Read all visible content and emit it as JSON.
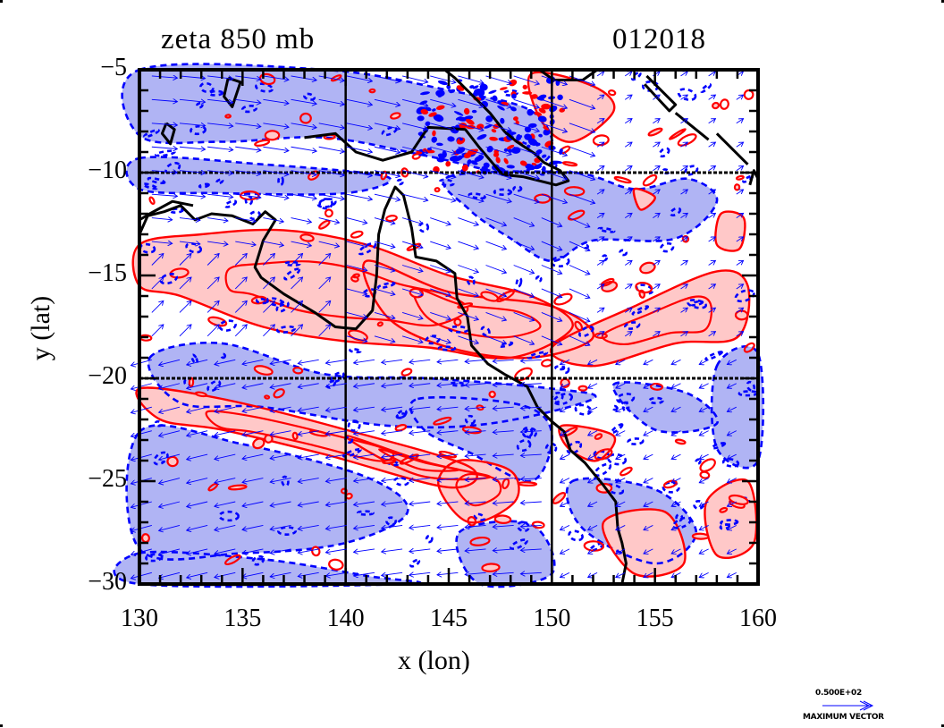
{
  "chart_data": {
    "type": "contour",
    "title": "zeta 850 mb",
    "timestamp": "012018",
    "xlabel": "x (lon)",
    "ylabel": "y (lat)",
    "xlim": [
      130,
      160
    ],
    "ylim": [
      -30,
      -5
    ],
    "xticks": [
      "130",
      "135",
      "140",
      "145",
      "150",
      "155",
      "160"
    ],
    "yticks": [
      "−5",
      "−10",
      "−15",
      "−20",
      "−25",
      "−30"
    ],
    "xtick_values": [
      130,
      135,
      140,
      145,
      150,
      155,
      160
    ],
    "ytick_values": [
      -5,
      -10,
      -15,
      -20,
      -25,
      -30
    ],
    "gridlines_lon": [
      140,
      150
    ],
    "gridlines_lat": [
      -10,
      -20
    ],
    "positive_contour_color": "#ff0000",
    "positive_fill_color": "#ffc8c8",
    "negative_contour_color": "#0000ff",
    "negative_fill_color": "#b0b4f4",
    "coastline_color": "#000000",
    "vector_color": "#0000ff",
    "vector_reference": {
      "magnitude_label": "0.500E+02",
      "caption": "MAXIMUM VECTOR"
    },
    "series": [
      {
        "name": "positive vorticity regions (lon, lat)",
        "regions": [
          [
            [
              130,
              -13.5
            ],
            [
              133,
              -13
            ],
            [
              137,
              -12.8
            ],
            [
              141,
              -13.5
            ],
            [
              145,
              -15
            ],
            [
              149,
              -16
            ],
            [
              151,
              -17.5
            ],
            [
              148,
              -19
            ],
            [
              144,
              -18.5
            ],
            [
              140,
              -18.2
            ],
            [
              136,
              -17.5
            ],
            [
              132,
              -16
            ],
            [
              130,
              -15.5
            ]
          ],
          [
            [
              141,
              -14.3
            ],
            [
              145,
              -15.8
            ],
            [
              150,
              -16.5
            ],
            [
              152,
              -18
            ],
            [
              149,
              -19
            ],
            [
              145,
              -18.5
            ],
            [
              142,
              -17
            ]
          ],
          [
            [
              150,
              -18.5
            ],
            [
              154,
              -16.5
            ],
            [
              158,
              -14.8
            ],
            [
              159.5,
              -15.5
            ],
            [
              159,
              -18
            ],
            [
              156,
              -18.3
            ],
            [
              152,
              -19.4
            ]
          ],
          [
            [
              130,
              -20.5
            ],
            [
              134,
              -21
            ],
            [
              140,
              -22.5
            ],
            [
              146,
              -24.3
            ],
            [
              145,
              -25.3
            ],
            [
              139,
              -23.7
            ],
            [
              134,
              -22.5
            ],
            [
              131,
              -22
            ]
          ],
          [
            [
              145.5,
              -24
            ],
            [
              148,
              -24.5
            ],
            [
              148.2,
              -26
            ],
            [
              146,
              -27
            ],
            [
              144.5,
              -25.2
            ]
          ],
          [
            [
              140,
              -22.8
            ],
            [
              144,
              -24.1
            ],
            [
              147,
              -24.8
            ],
            [
              143.5,
              -24.7
            ]
          ],
          [
            [
              149,
              -5.2
            ],
            [
              152,
              -5.8
            ],
            [
              153,
              -7
            ],
            [
              151,
              -8.5
            ],
            [
              149.5,
              -7.5
            ]
          ],
          [
            [
              154,
              -10.8
            ],
            [
              155,
              -11.2
            ],
            [
              154.3,
              -11.8
            ]
          ],
          [
            [
              158.2,
              -12
            ],
            [
              159.3,
              -12.2
            ],
            [
              159.1,
              -13.7
            ],
            [
              158,
              -13.5
            ]
          ],
          [
            [
              150.5,
              -22.3
            ],
            [
              153,
              -22.8
            ],
            [
              152.2,
              -24
            ],
            [
              150.8,
              -23.4
            ]
          ],
          [
            [
              157.5,
              -26
            ],
            [
              159.5,
              -25
            ],
            [
              159.8,
              -28
            ],
            [
              158,
              -28.6
            ]
          ],
          [
            [
              152.5,
              -27
            ],
            [
              155.5,
              -26.5
            ],
            [
              156.4,
              -29
            ],
            [
              154,
              -29.5
            ]
          ]
        ]
      },
      {
        "name": "negative vorticity regions (lon, lat)",
        "regions": [
          [
            [
              130,
              -5
            ],
            [
              139,
              -5
            ],
            [
              145,
              -6
            ],
            [
              149,
              -7
            ],
            [
              150,
              -9
            ],
            [
              148,
              -10
            ],
            [
              144,
              -9.2
            ],
            [
              139,
              -8.3
            ],
            [
              134,
              -8.5
            ],
            [
              130,
              -8.2
            ]
          ],
          [
            [
              130,
              -9.3
            ],
            [
              136,
              -9.6
            ],
            [
              142,
              -10.2
            ],
            [
              140,
              -11
            ],
            [
              134,
              -11
            ],
            [
              130,
              -10.8
            ]
          ],
          [
            [
              145,
              -10.2
            ],
            [
              151,
              -10
            ],
            [
              154,
              -10.8
            ],
            [
              156.6,
              -10.3
            ],
            [
              158,
              -11.4
            ],
            [
              156,
              -13.2
            ],
            [
              152,
              -13.3
            ],
            [
              150,
              -14.3
            ],
            [
              148,
              -13.2
            ],
            [
              146,
              -11.8
            ]
          ],
          [
            [
              130.5,
              -19
            ],
            [
              134,
              -18.3
            ],
            [
              139,
              -19.8
            ],
            [
              144,
              -20
            ],
            [
              150,
              -20.5
            ],
            [
              152,
              -21
            ],
            [
              147,
              -22.2
            ],
            [
              142,
              -22.3
            ],
            [
              136,
              -21.4
            ],
            [
              132,
              -21.2
            ]
          ],
          [
            [
              130,
              -22.6
            ],
            [
              135,
              -23.2
            ],
            [
              141,
              -24.8
            ],
            [
              143,
              -26.5
            ],
            [
              140,
              -28
            ],
            [
              135,
              -28.5
            ],
            [
              130,
              -28.3
            ]
          ],
          [
            [
              130,
              -28.5
            ],
            [
              136,
              -28.8
            ],
            [
              141,
              -29.6
            ],
            [
              143,
              -30
            ],
            [
              130,
              -30
            ]
          ],
          [
            [
              143.5,
              -21
            ],
            [
              148.5,
              -21.3
            ],
            [
              150,
              -22.7
            ],
            [
              149,
              -25
            ],
            [
              146,
              -23.6
            ],
            [
              143.8,
              -22.5
            ]
          ],
          [
            [
              151,
              -25
            ],
            [
              155,
              -25.4
            ],
            [
              157,
              -27.5
            ],
            [
              155,
              -29
            ],
            [
              151.5,
              -27.3
            ]
          ],
          [
            [
              145.5,
              -27.5
            ],
            [
              149,
              -27.1
            ],
            [
              150,
              -29.5
            ],
            [
              146.5,
              -30
            ]
          ],
          [
            [
              158,
              -19.4
            ],
            [
              160,
              -18.8
            ],
            [
              160,
              -24
            ],
            [
              158,
              -23.4
            ]
          ],
          [
            [
              153,
              -20.3
            ],
            [
              156.5,
              -20.7
            ],
            [
              158,
              -22.2
            ],
            [
              155,
              -22.5
            ]
          ]
        ]
      }
    ],
    "coastline_description": "New Guinea south coast (north edge), Cape York Peninsula and Queensland east coast of Australia, Arnhem Land in the west"
  }
}
